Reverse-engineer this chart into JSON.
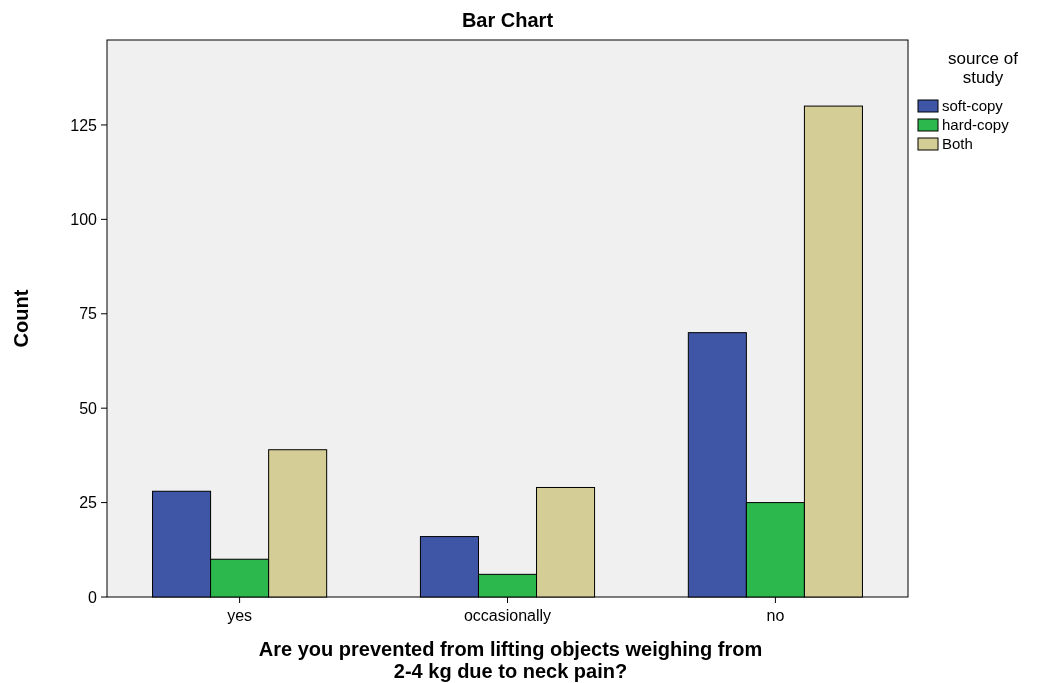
{
  "chart_data": {
    "type": "bar",
    "title": "Bar Chart",
    "xlabel": "Are you prevented from lifting objects weighing from 2-4 kg due to neck pain?",
    "ylabel": "Count",
    "legend_title": "source of study",
    "categories": [
      "yes",
      "occasionally",
      "no"
    ],
    "series": [
      {
        "name": "soft-copy",
        "color": "#3f56a6",
        "values": [
          28,
          16,
          70
        ]
      },
      {
        "name": "hard-copy",
        "color": "#2db84d",
        "values": [
          10,
          6,
          25
        ]
      },
      {
        "name": "Both",
        "color": "#d4cd96",
        "values": [
          39,
          29,
          130
        ]
      }
    ],
    "ylim": [
      0,
      147.5
    ],
    "yticks": [
      0,
      25,
      50,
      75,
      100,
      125
    ],
    "grid": false,
    "legend": "top right"
  }
}
